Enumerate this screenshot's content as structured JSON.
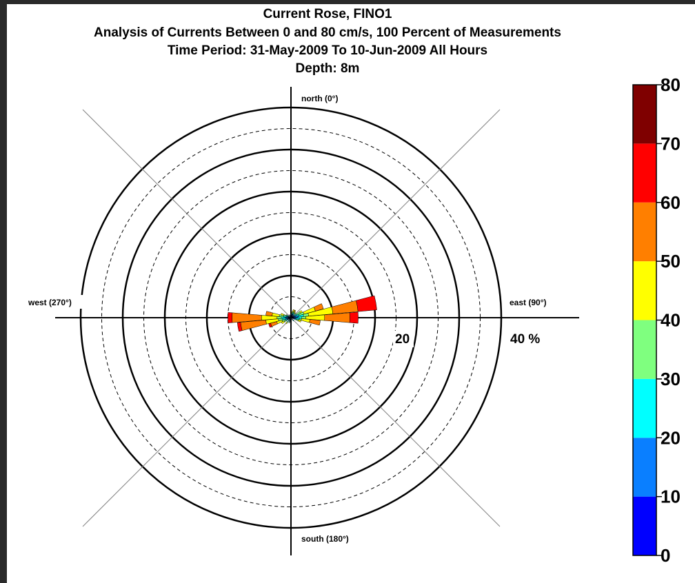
{
  "chart_data": {
    "type": "polar-bar",
    "title_lines": [
      "Current Rose, FINO1",
      "Analysis of Currents Between 0 and 80 cm/s, 100 Percent of Measurements",
      "Time Period: 31-May-2009 To 10-Jun-2009 All Hours",
      "Depth: 8m"
    ],
    "direction_labels": {
      "north": "north (0°)",
      "east": "east (90°)",
      "south": "south (180°)",
      "west": "west (270°)"
    },
    "ring_labels": [
      "20",
      "40 %"
    ],
    "radial_max_percent": 50,
    "solid_rings_percent": [
      10,
      20,
      30,
      40,
      50
    ],
    "dashed_rings_percent": [
      5,
      15,
      25,
      35,
      45
    ],
    "speed_bins": [
      {
        "range": "0-10",
        "color": "#0000FF"
      },
      {
        "range": "10-20",
        "color": "#0A7FFF"
      },
      {
        "range": "20-30",
        "color": "#00FFFF"
      },
      {
        "range": "30-40",
        "color": "#7FFF7F"
      },
      {
        "range": "40-50",
        "color": "#FFFF00"
      },
      {
        "range": "50-60",
        "color": "#FF7F00"
      },
      {
        "range": "60-70",
        "color": "#FF0000"
      },
      {
        "range": "70-80",
        "color": "#7F0000"
      }
    ],
    "sectors": [
      {
        "direction": 10,
        "cumulative": [
          0.5,
          0.8,
          1.0,
          1.2,
          1.5,
          0,
          0,
          0
        ]
      },
      {
        "direction": 20,
        "cumulative": [
          0.6,
          1.0,
          1.3,
          1.6,
          2.0,
          0,
          0,
          0
        ]
      },
      {
        "direction": 30,
        "cumulative": [
          0.5,
          0.9,
          1.2,
          1.5,
          1.8,
          2.0,
          0,
          0
        ]
      },
      {
        "direction": 40,
        "cumulative": [
          0.5,
          0.8,
          1.1,
          1.4,
          1.6,
          0,
          0,
          0
        ]
      },
      {
        "direction": 60,
        "cumulative": [
          0.5,
          0.9,
          1.5,
          2.5,
          3.0,
          0,
          0,
          0
        ]
      },
      {
        "direction": 70,
        "cumulative": [
          0.6,
          1.2,
          2.0,
          3.2,
          6.0,
          8.0,
          0,
          0
        ]
      },
      {
        "direction": 80,
        "cumulative": [
          0.8,
          1.8,
          3.0,
          4.2,
          10.0,
          16.0,
          20.5,
          0
        ]
      },
      {
        "direction": 90,
        "cumulative": [
          0.8,
          1.5,
          2.5,
          3.5,
          8.0,
          14.0,
          16.0,
          0
        ]
      },
      {
        "direction": 100,
        "cumulative": [
          0.6,
          1.2,
          2.0,
          2.5,
          4.5,
          7.0,
          0,
          0
        ]
      },
      {
        "direction": 110,
        "cumulative": [
          0.5,
          0.9,
          1.3,
          1.8,
          2.5,
          0,
          0,
          0
        ]
      },
      {
        "direction": 140,
        "cumulative": [
          0.4,
          0.7,
          1.0,
          0,
          0,
          0,
          0,
          0
        ]
      },
      {
        "direction": 200,
        "cumulative": [
          0.4,
          0.7,
          1.0,
          1.3,
          0,
          0,
          0,
          0
        ]
      },
      {
        "direction": 220,
        "cumulative": [
          0.5,
          0.8,
          1.2,
          1.5,
          1.8,
          0,
          0,
          0
        ]
      },
      {
        "direction": 240,
        "cumulative": [
          0.5,
          0.9,
          1.3,
          1.8,
          2.5,
          0,
          0,
          0
        ]
      },
      {
        "direction": 250,
        "cumulative": [
          0.5,
          1.0,
          1.5,
          2.2,
          3.5,
          5.0,
          5.5,
          0
        ]
      },
      {
        "direction": 260,
        "cumulative": [
          0.6,
          1.2,
          2.0,
          3.0,
          6.0,
          12.0,
          12.8,
          0
        ]
      },
      {
        "direction": 270,
        "cumulative": [
          0.7,
          1.4,
          2.3,
          3.3,
          7.0,
          14.0,
          15.0,
          0
        ]
      },
      {
        "direction": 280,
        "cumulative": [
          0.6,
          1.0,
          1.8,
          2.8,
          4.5,
          6.0,
          0,
          0
        ]
      },
      {
        "direction": 290,
        "cumulative": [
          0.5,
          0.8,
          1.2,
          1.8,
          2.5,
          0,
          0,
          0
        ]
      },
      {
        "direction": 300,
        "cumulative": [
          0.4,
          0.7,
          1.0,
          1.3,
          0,
          0,
          0,
          0
        ]
      },
      {
        "direction": 330,
        "cumulative": [
          0.4,
          0.6,
          0.8,
          0,
          0,
          0,
          0,
          0
        ]
      }
    ],
    "colorbar": {
      "ticks": [
        "0",
        "10",
        "20",
        "30",
        "40",
        "50",
        "60",
        "70",
        "80"
      ],
      "colors": [
        "#0000FF",
        "#0A7FFF",
        "#00FFFF",
        "#7FFF7F",
        "#FFFF00",
        "#FF7F00",
        "#FF0000",
        "#7F0000"
      ]
    }
  }
}
